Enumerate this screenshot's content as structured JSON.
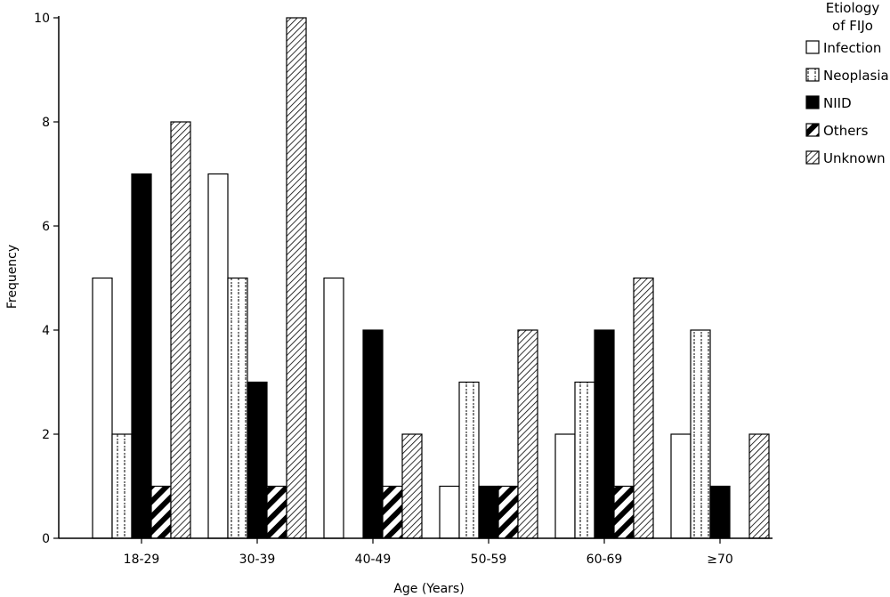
{
  "chart_data": {
    "type": "bar",
    "xlabel": "Age (Years)",
    "ylabel": "Frequency",
    "ylim": [
      0,
      10
    ],
    "yticks": [
      "0",
      "2",
      "4",
      "6",
      "8",
      "10"
    ],
    "grid": false,
    "categories": [
      "18-29",
      "30-39",
      "40-49",
      "50-59",
      "60-69",
      "≥70"
    ],
    "legend": {
      "title": [
        "Etiology",
        "of FIJo"
      ],
      "position": "top-right"
    },
    "series": [
      {
        "name": "Infection",
        "pattern": "white",
        "values": [
          5,
          7,
          5,
          1,
          2,
          2
        ]
      },
      {
        "name": "Neoplasia",
        "pattern": "dotted",
        "values": [
          2,
          5,
          0,
          3,
          3,
          4
        ]
      },
      {
        "name": "NIID",
        "pattern": "black",
        "values": [
          7,
          3,
          4,
          1,
          4,
          1
        ]
      },
      {
        "name": "Others",
        "pattern": "thick-hatch",
        "values": [
          1,
          1,
          1,
          1,
          1,
          0
        ]
      },
      {
        "name": "Unknown",
        "pattern": "thin-hatch",
        "values": [
          8,
          10,
          2,
          4,
          5,
          2
        ]
      }
    ],
    "colors": {
      "bar_stroke": "#000000",
      "background": "#ffffff"
    }
  }
}
